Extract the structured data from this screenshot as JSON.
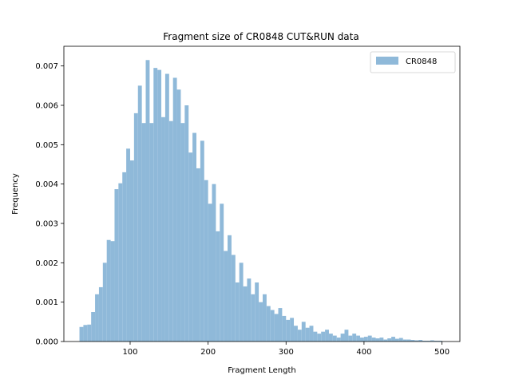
{
  "chart_data": {
    "type": "bar",
    "title": "Fragment size of CR0848 CUT&RUN data",
    "xlabel": "Fragment Length",
    "ylabel": "Frequency",
    "xlim": [
      15,
      523
    ],
    "ylim": [
      0,
      0.0075
    ],
    "xticks": [
      100,
      200,
      300,
      400,
      500
    ],
    "yticks": [
      0.0,
      0.001,
      0.002,
      0.003,
      0.004,
      0.005,
      0.006,
      0.007
    ],
    "ytick_labels": [
      "0.000",
      "0.001",
      "0.002",
      "0.003",
      "0.004",
      "0.005",
      "0.006",
      "0.007"
    ],
    "grid": false,
    "legend_position": "top-right",
    "series": [
      {
        "name": "CR0848",
        "color": "#8fb9d9",
        "bin_start": 35,
        "bin_width": 5,
        "values": [
          0.00037,
          0.00042,
          0.00043,
          0.00075,
          0.0012,
          0.00138,
          0.002,
          0.00258,
          0.00255,
          0.00387,
          0.00402,
          0.0043,
          0.0049,
          0.0046,
          0.0058,
          0.0065,
          0.00555,
          0.00715,
          0.00555,
          0.00695,
          0.0069,
          0.0057,
          0.0068,
          0.0056,
          0.0067,
          0.0064,
          0.00555,
          0.006,
          0.0048,
          0.0053,
          0.0044,
          0.0051,
          0.0041,
          0.0035,
          0.004,
          0.0028,
          0.0035,
          0.0023,
          0.0027,
          0.0022,
          0.0015,
          0.002,
          0.0014,
          0.0016,
          0.0012,
          0.0015,
          0.001,
          0.0012,
          0.0009,
          0.0008,
          0.0007,
          0.00085,
          0.00065,
          0.00055,
          0.0006,
          0.0004,
          0.0003,
          0.0005,
          0.00035,
          0.0004,
          0.00025,
          0.0002,
          0.00025,
          0.0003,
          0.0002,
          0.00015,
          0.0001,
          0.0002,
          0.0003,
          0.00015,
          0.0002,
          0.00015,
          0.0001,
          0.00012,
          0.00015,
          0.0001,
          8e-05,
          0.0001,
          5e-05,
          8e-05,
          0.00012,
          7e-05,
          9e-05,
          5e-05,
          5e-05,
          4e-05,
          3e-05,
          4e-05,
          2e-05,
          2e-05,
          3e-05,
          2e-05,
          2e-05
        ]
      }
    ]
  }
}
